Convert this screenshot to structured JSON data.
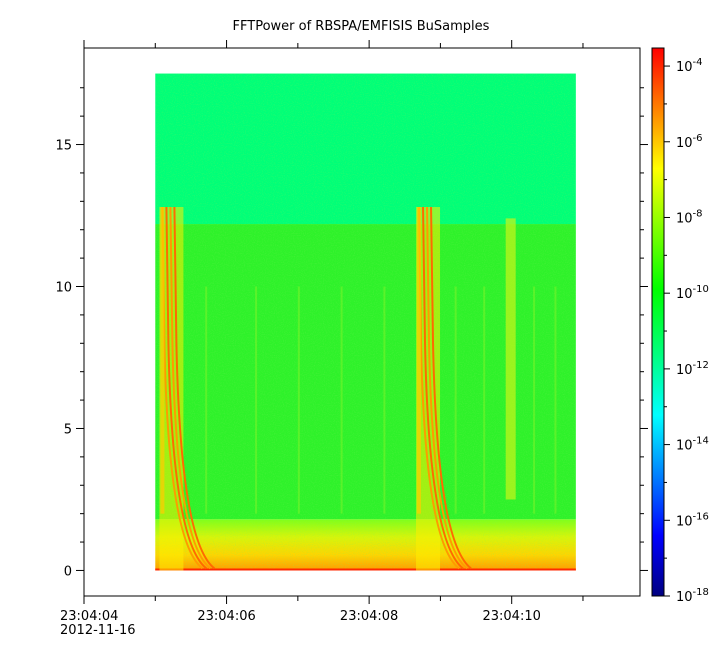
{
  "chart_data": {
    "type": "heatmap",
    "title": "FFTPower of RBSPA/EMFISIS  BuSamples",
    "xlabel": "",
    "ylabel": "",
    "x_ticks": [
      "23:04:04",
      "23:04:06",
      "23:04:08",
      "23:04:10"
    ],
    "x_date_label": "2012-11-16",
    "x_range": [
      "23:04:04.0",
      "23:04:11.8"
    ],
    "data_time_range": [
      "23:04:05.0",
      "23:04:10.9"
    ],
    "y_ticks": [
      0,
      5,
      10,
      15
    ],
    "ylim": [
      -0.9,
      18.4
    ],
    "data_y_range": [
      0,
      17.5
    ],
    "colorbar": {
      "scale": "log",
      "range": [
        1e-18,
        0.0003
      ],
      "tick_base": "10",
      "tick_exponents": [
        "-4",
        "-6",
        "-8",
        "-10",
        "-12",
        "-14",
        "-16",
        "-18"
      ],
      "colormap": [
        "#000080",
        "#0000ff",
        "#0080ff",
        "#00ffff",
        "#00ff80",
        "#00ff00",
        "#80ff00",
        "#ffff00",
        "#ff8000",
        "#ff0000"
      ]
    },
    "features": {
      "background_low_freq_power": "1e-10",
      "background_high_freq_power": "1e-12",
      "band_edge_freq": 12.2,
      "low_band_top_freq": 1.8,
      "dispersive_bursts": [
        {
          "start_time": "23:04:05.1",
          "max_freq": 12.8
        },
        {
          "start_time": "23:04:08.7",
          "max_freq": 12.8
        }
      ],
      "faint_bursts": [
        {
          "time": "23:04:10.0",
          "max_freq": 12.4
        }
      ]
    },
    "grid": false,
    "legend": "colorbar-right"
  }
}
